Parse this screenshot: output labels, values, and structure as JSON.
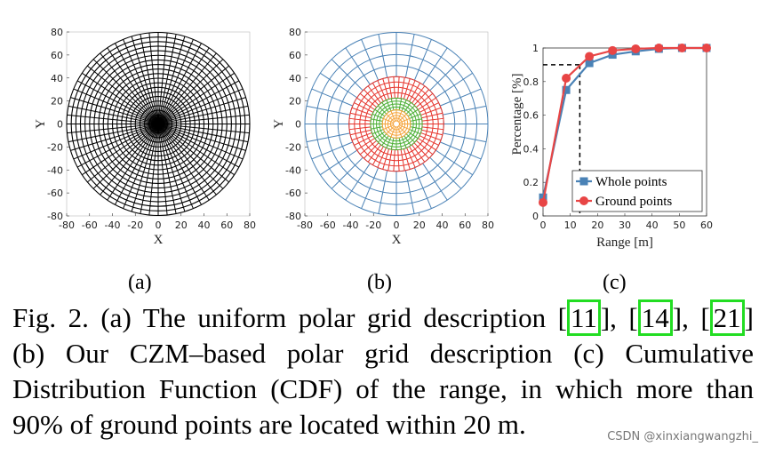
{
  "panels": {
    "a": {
      "xlabel": "X",
      "ylabel": "Y",
      "xticks": [
        "-80",
        "-60",
        "-40",
        "-20",
        "0",
        "20",
        "40",
        "60",
        "80"
      ],
      "yticks": [
        "80",
        "60",
        "40",
        "20",
        "0",
        "-20",
        "-40",
        "-60",
        "-80"
      ],
      "range": [
        -80,
        80
      ],
      "grid_color": "#000000",
      "rings": 20,
      "sectors": 64,
      "max_radius": 80
    },
    "b": {
      "xlabel": "X",
      "ylabel": "Y",
      "xticks": [
        "-80",
        "-60",
        "-40",
        "-20",
        "0",
        "20",
        "40",
        "60",
        "80"
      ],
      "yticks": [
        "80",
        "60",
        "40",
        "20",
        "0",
        "-20",
        "-40",
        "-60",
        "-80"
      ],
      "range": [
        -80,
        80
      ],
      "zones": [
        {
          "r_min": 2.7,
          "r_max": 12.3,
          "rings": 4,
          "sectors": 16,
          "color": "#f5a43c"
        },
        {
          "r_min": 12.3,
          "r_max": 22.6,
          "rings": 4,
          "sectors": 32,
          "color": "#4caf35"
        },
        {
          "r_min": 22.6,
          "r_max": 41.4,
          "rings": 4,
          "sectors": 54,
          "color": "#e6342c"
        },
        {
          "r_min": 41.4,
          "r_max": 80.0,
          "rings": 4,
          "sectors": 32,
          "color": "#4a82b6"
        }
      ]
    }
  },
  "chart_data": {
    "type": "line",
    "xlabel": "Range [m]",
    "ylabel": "Percentage [%]",
    "xlim": [
      0,
      60
    ],
    "ylim": [
      0,
      1
    ],
    "xticks": [
      "0",
      "10",
      "20",
      "30",
      "40",
      "50",
      "60"
    ],
    "yticks": [
      "1",
      "0.8",
      "0.6",
      "0.4",
      "0.2",
      "0"
    ],
    "x": [
      0,
      8.5,
      17,
      25.5,
      34,
      42.5,
      51,
      60
    ],
    "series": [
      {
        "name": "Whole points",
        "values": [
          0.11,
          0.75,
          0.91,
          0.96,
          0.98,
          0.995,
          1.0,
          1.0
        ],
        "color": "#4a82b6",
        "marker": "square"
      },
      {
        "name": "Ground points",
        "values": [
          0.08,
          0.82,
          0.95,
          0.985,
          0.995,
          1.0,
          1.0,
          1.0
        ],
        "color": "#e84545",
        "marker": "circle"
      }
    ],
    "reference": {
      "y": 0.9,
      "x": 13.5,
      "style": "dashed"
    },
    "legend": "bottom-right"
  },
  "sub_labels": [
    "(a)",
    "(b)",
    "(c)"
  ],
  "caption": {
    "lines": [
      [
        "Fig. 2. (a) The uniform polar grid description [",
        "11",
        "], [",
        "14",
        "], [",
        "21",
        "]"
      ],
      [
        "(b) Our CZM–based polar grid description (c) Cumulative"
      ],
      [
        "Distribution Function (CDF) of the range, in which more than"
      ],
      [
        "90% of ground points are located within 20 m."
      ]
    ]
  },
  "watermark": "CSDN @xinxiangwangzhi_"
}
